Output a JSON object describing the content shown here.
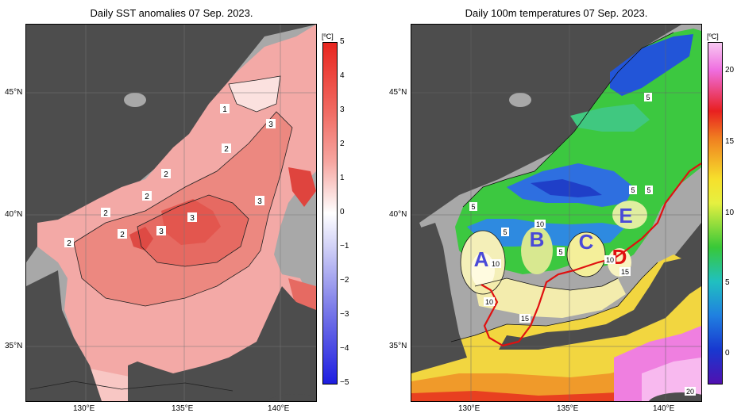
{
  "left_panel": {
    "title": "Daily SST anomalies 07 Sep. 2023.",
    "unit": "[ºC]",
    "colorbar_ticks": [
      "5",
      "4",
      "3",
      "2",
      "1",
      "0",
      "−1",
      "−2",
      "−3",
      "−4",
      "−5"
    ],
    "colorbar_range": [
      -5,
      5
    ],
    "contour_labels": [
      "1",
      "2",
      "2",
      "2",
      "2",
      "2",
      "2",
      "3",
      "3",
      "3",
      "3",
      "3"
    ]
  },
  "right_panel": {
    "title": "Daily 100m temperatures 07 Sep. 2023.",
    "unit": "[ºC]",
    "colorbar_ticks": [
      "20",
      "15",
      "10",
      "5",
      "0"
    ],
    "colorbar_range": [
      -3,
      23
    ],
    "contour_labels": [
      "5",
      "5",
      "5",
      "5",
      "5",
      "5",
      "10",
      "10",
      "10",
      "10",
      "15",
      "15",
      "20"
    ],
    "region_labels": [
      "A",
      "B",
      "C",
      "D",
      "E"
    ]
  },
  "axes": {
    "lat_ticks": [
      "45°N",
      "40°N",
      "35°N"
    ],
    "lon_ticks": [
      "130°E",
      "135°E",
      "140°E"
    ]
  },
  "colors": {
    "land": "#4d4d4d",
    "shelf": "#a8a8a8",
    "anomaly_high": "#e0302a",
    "anomaly_low": "#2020e0",
    "region_label": "#4a4ad8",
    "region_d": "#e01010",
    "front_line": "#e01010"
  }
}
